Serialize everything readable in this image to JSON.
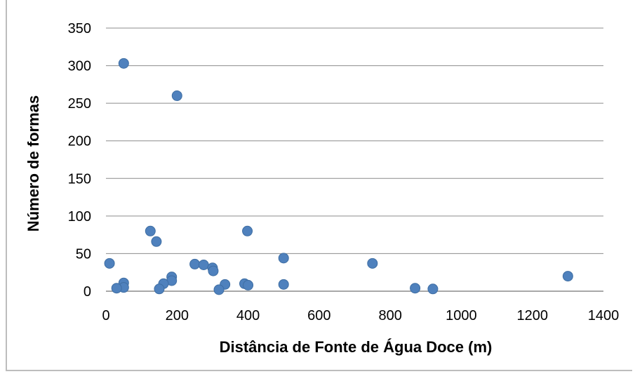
{
  "chart_data": {
    "type": "scatter",
    "title": "",
    "xlabel": "Distância de Fonte de Água Doce (m)",
    "ylabel": "Número de formas",
    "xlim": [
      0,
      1400
    ],
    "ylim": [
      0,
      350
    ],
    "xticks": [
      "0",
      "200",
      "400",
      "600",
      "800",
      "1000",
      "1200",
      "1400"
    ],
    "yticks": [
      "0",
      "50",
      "100",
      "150",
      "200",
      "250",
      "300",
      "350"
    ],
    "grid": "horizontal",
    "legend": "none",
    "marker_color": "#4f81bd",
    "gridline_color": "#8c8c8c",
    "series": [
      {
        "x": [
          50,
          200,
          125,
          142,
          398,
          10,
          500,
          750,
          250,
          275,
          300,
          302,
          185,
          185,
          50,
          50,
          162,
          150,
          30,
          335,
          390,
          400,
          500,
          318,
          870,
          920,
          1300
        ],
        "y": [
          303,
          260,
          80,
          66,
          80,
          37,
          44,
          37,
          36,
          35,
          31,
          27,
          19,
          14,
          11,
          5,
          10,
          3,
          4,
          9,
          10,
          8,
          9,
          2,
          4,
          3,
          20
        ]
      }
    ]
  }
}
